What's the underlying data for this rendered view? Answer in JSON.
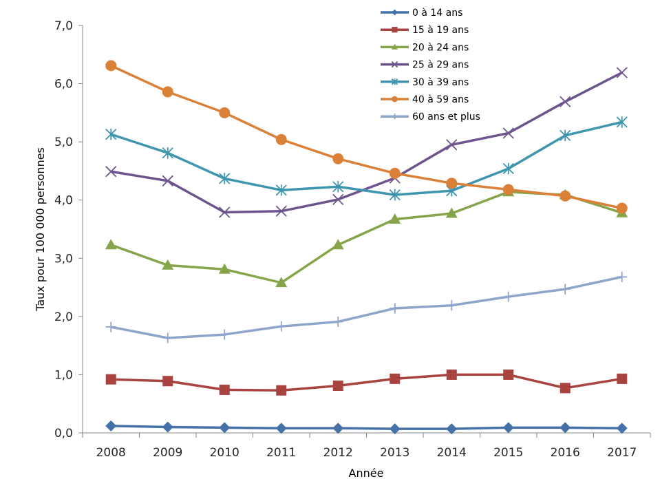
{
  "chart_data": {
    "type": "line",
    "title": "",
    "xlabel": "Année",
    "ylabel": "Taux pour 100 000 personnes",
    "x": [
      "2008",
      "2009",
      "2010",
      "2011",
      "2012",
      "2013",
      "2014",
      "2015",
      "2016",
      "2017"
    ],
    "ylim": [
      0,
      7
    ],
    "yticks": [
      "0,0",
      "1,0",
      "2,0",
      "3,0",
      "4,0",
      "5,0",
      "6,0",
      "7,0"
    ],
    "grid": false,
    "legend_position": "top-right",
    "series": [
      {
        "name": "0 à 14 ans",
        "color": "#4472A8",
        "marker": "diamond",
        "values": [
          0.12,
          0.1,
          0.09,
          0.08,
          0.08,
          0.07,
          0.07,
          0.09,
          0.09,
          0.08
        ]
      },
      {
        "name": "15 à 19 ans",
        "color": "#A84340",
        "marker": "square",
        "values": [
          0.92,
          0.89,
          0.74,
          0.73,
          0.81,
          0.93,
          1.0,
          1.0,
          0.77,
          0.93
        ]
      },
      {
        "name": "20 à 24 ans",
        "color": "#86A44A",
        "marker": "triangle",
        "values": [
          3.23,
          2.88,
          2.81,
          2.58,
          3.23,
          3.67,
          3.77,
          4.14,
          4.09,
          3.78
        ]
      },
      {
        "name": "25 à 29 ans",
        "color": "#6E548D",
        "marker": "x",
        "values": [
          4.49,
          4.33,
          3.79,
          3.81,
          4.01,
          4.38,
          4.95,
          5.15,
          5.69,
          6.19
        ]
      },
      {
        "name": "30 à 39 ans",
        "color": "#3D96AE",
        "marker": "star",
        "values": [
          5.13,
          4.81,
          4.37,
          4.17,
          4.23,
          4.09,
          4.16,
          4.54,
          5.11,
          5.34
        ]
      },
      {
        "name": "40 à 59 ans",
        "color": "#DA8137",
        "marker": "circle",
        "values": [
          6.31,
          5.86,
          5.5,
          5.04,
          4.71,
          4.46,
          4.29,
          4.18,
          4.07,
          3.86
        ]
      },
      {
        "name": "60 ans et plus",
        "color": "#8EA5CB",
        "marker": "plus",
        "values": [
          1.82,
          1.63,
          1.69,
          1.83,
          1.91,
          2.14,
          2.19,
          2.34,
          2.47,
          2.68
        ]
      }
    ]
  }
}
